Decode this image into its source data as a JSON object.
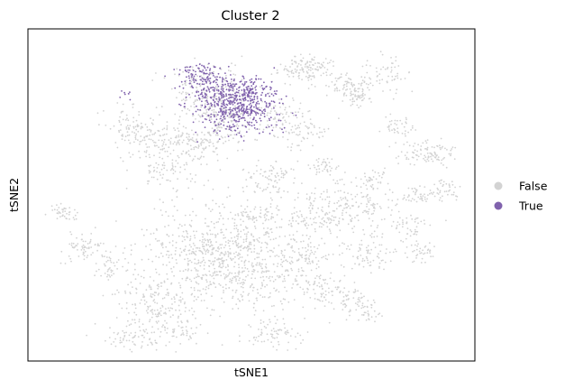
{
  "chart_data": {
    "type": "scatter",
    "title": "Cluster 2",
    "xlabel": "tSNE1",
    "ylabel": "tSNE2",
    "xticks": [],
    "yticks": [],
    "grid": false,
    "legend_placement": "right",
    "legend": [
      {
        "label": "False",
        "color": "#d3d3d3"
      },
      {
        "label": "True",
        "color": "#8062ad"
      }
    ],
    "series": [
      {
        "name": "False",
        "color": "#d3d3d3",
        "clusters": [
          {
            "center": [
              40,
              82
            ],
            "spread": [
              5,
              5
            ],
            "n": 240
          },
          {
            "center": [
              22,
              71
            ],
            "spread": [
              3,
              3
            ],
            "n": 90
          },
          {
            "center": [
              35,
              67
            ],
            "spread": [
              7,
              3
            ],
            "n": 220
          },
          {
            "center": [
              30,
              58
            ],
            "spread": [
              4,
              3
            ],
            "n": 70
          },
          {
            "center": [
              6,
              44
            ],
            "spread": [
              2,
              1.5
            ],
            "n": 40
          },
          {
            "center": [
              12,
              33
            ],
            "spread": [
              3,
              2
            ],
            "n": 70
          },
          {
            "center": [
              17,
              27
            ],
            "spread": [
              2,
              2
            ],
            "n": 40
          },
          {
            "center": [
              45,
              30
            ],
            "spread": [
              10,
              9
            ],
            "n": 900
          },
          {
            "center": [
              28,
              15
            ],
            "spread": [
              5,
              5
            ],
            "n": 180
          },
          {
            "center": [
              22,
              4
            ],
            "spread": [
              4,
              2
            ],
            "n": 60
          },
          {
            "center": [
              34,
              6
            ],
            "spread": [
              2,
              2
            ],
            "n": 30
          },
          {
            "center": [
              55,
              55
            ],
            "spread": [
              3,
              3
            ],
            "n": 80
          },
          {
            "center": [
              53,
              43
            ],
            "spread": [
              2,
              2
            ],
            "n": 40
          },
          {
            "center": [
              62,
              70
            ],
            "spread": [
              4,
              3
            ],
            "n": 70
          },
          {
            "center": [
              57,
              75
            ],
            "spread": [
              3,
              3
            ],
            "n": 60
          },
          {
            "center": [
              63,
              90
            ],
            "spread": [
              3,
              2
            ],
            "n": 130
          },
          {
            "center": [
              72,
              85
            ],
            "spread": [
              2,
              2
            ],
            "n": 50
          },
          {
            "center": [
              67,
              59
            ],
            "spread": [
              2,
              2
            ],
            "n": 40
          },
          {
            "center": [
              65,
              43
            ],
            "spread": [
              4,
              3
            ],
            "n": 90
          },
          {
            "center": [
              75,
              47
            ],
            "spread": [
              6,
              4
            ],
            "n": 160
          },
          {
            "center": [
              62,
              30
            ],
            "spread": [
              3,
              2
            ],
            "n": 60
          },
          {
            "center": [
              78,
              32
            ],
            "spread": [
              3,
              3
            ],
            "n": 80
          },
          {
            "center": [
              68,
              20
            ],
            "spread": [
              4,
              3
            ],
            "n": 90
          },
          {
            "center": [
              75,
              14
            ],
            "spread": [
              3,
              2
            ],
            "n": 60
          },
          {
            "center": [
              54,
              5
            ],
            "spread": [
              4,
              2
            ],
            "n": 70
          },
          {
            "center": [
              75,
              82
            ],
            "spread": [
              2,
              2
            ],
            "n": 60
          },
          {
            "center": [
              84,
              72
            ],
            "spread": [
              2,
              2
            ],
            "n": 40
          },
          {
            "center": [
              90,
              63
            ],
            "spread": [
              3,
              2
            ],
            "n": 60
          },
          {
            "center": [
              94,
              63
            ],
            "spread": [
              2,
              2
            ],
            "n": 40
          },
          {
            "center": [
              89,
              50
            ],
            "spread": [
              2,
              2
            ],
            "n": 40
          },
          {
            "center": [
              95,
              51
            ],
            "spread": [
              2,
              2
            ],
            "n": 40
          },
          {
            "center": [
              87,
              40
            ],
            "spread": [
              2,
              2
            ],
            "n": 40
          },
          {
            "center": [
              89,
              32
            ],
            "spread": [
              2,
              2
            ],
            "n": 40
          },
          {
            "center": [
              81,
              88
            ],
            "spread": [
              3,
              3
            ],
            "n": 60
          },
          {
            "center": [
              45,
              74
            ],
            "spread": [
              3,
              3
            ],
            "n": 60
          },
          {
            "center": [
              78,
              55
            ],
            "spread": [
              2,
              2
            ],
            "n": 30
          }
        ]
      },
      {
        "name": "True",
        "color": "#8062ad",
        "clusters": [
          {
            "center": [
              47,
              78
            ],
            "spread": [
              5,
              4
            ],
            "n": 460
          },
          {
            "center": [
              41,
              84
            ],
            "spread": [
              3,
              3
            ],
            "n": 120
          },
          {
            "center": [
              38,
              88
            ],
            "spread": [
              3,
              2
            ],
            "n": 70
          },
          {
            "center": [
              50,
              84
            ],
            "spread": [
              2,
              2
            ],
            "n": 70
          },
          {
            "center": [
              21,
              82
            ],
            "spread": [
              1,
              1
            ],
            "n": 8
          }
        ]
      }
    ],
    "xlim": [
      0,
      100
    ],
    "ylim": [
      0,
      100
    ]
  }
}
